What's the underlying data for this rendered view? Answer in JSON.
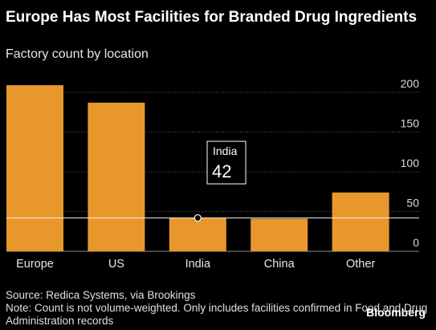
{
  "header": {
    "title": "Europe Has Most Facilities for Branded Drug Ingredients",
    "subtitle": "Factory count by location"
  },
  "chart_data": {
    "type": "bar",
    "categories": [
      "Europe",
      "US",
      "India",
      "China",
      "Other"
    ],
    "values": [
      209,
      187,
      42,
      41,
      74
    ],
    "ylim": [
      0,
      200
    ],
    "yticks": [
      0,
      50,
      100,
      150,
      200
    ],
    "grid": true,
    "bar_color": "#e8982b",
    "highlight": {
      "category": "India",
      "label": "India",
      "value": "42",
      "line_value": 42
    }
  },
  "footer": {
    "source": "Source: Redica Systems, via Brookings",
    "note": "Note: Count is not volume-weighted. Only includes facilities confirmed in Food and Drug Administration records",
    "brand": "Bloomberg"
  }
}
